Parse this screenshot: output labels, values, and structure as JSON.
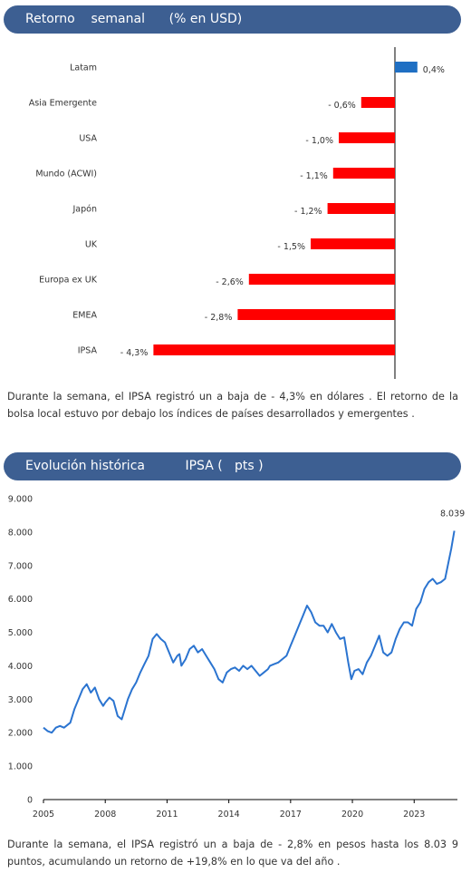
{
  "section1": {
    "title": "Retorno    semanal      (% en USD)",
    "paragraph": "Durante  la semana,  el IPSA registró  un a baja  de  - 4,3% en dólares  . El retorno  de la bolsa local estuvo por debajo los índices de países desarrollados  y emergentes  ."
  },
  "section2": {
    "title": "Evolución histórica          IPSA (   pts )",
    "paragraph": "Durante  la semana,  el IPSA registró  un a baja  de  - 2,8% en pesos  hasta  los  8.03 9 puntos,  acumulando   un retorno  de +19,8% en lo que  va del año ."
  },
  "colors": {
    "header_bg": "#3d5f92",
    "positive_bar": "#1f6fc3",
    "negative_bar": "#ff0000",
    "line": "#2b74d0"
  },
  "chart_data": [
    {
      "type": "bar",
      "orientation": "horizontal",
      "title": "Retorno    semanal      (% en USD)",
      "categories": [
        "Latam",
        "Asia Emergente",
        "USA",
        "Mundo (ACWI)",
        "Japón",
        "UK",
        "Europa ex UK",
        "EMEA",
        "IPSA"
      ],
      "values": [
        0.4,
        -0.6,
        -1.0,
        -1.1,
        -1.2,
        -1.5,
        -2.6,
        -2.8,
        -4.3
      ],
      "value_labels": [
        "0,4%",
        "- 0,6%",
        "- 1,0%",
        "- 1,1%",
        "- 1,2%",
        "- 1,5%",
        "- 2,6%",
        "- 2,8%",
        "- 4,3%"
      ],
      "grid": false
    },
    {
      "type": "line",
      "title": "Evolución histórica          IPSA (   pts )",
      "x_ticks": [
        "2005",
        "2008",
        "2011",
        "2014",
        "2017",
        "2020",
        "2023"
      ],
      "x_tick_values": [
        2005,
        2008,
        2011,
        2014,
        2017,
        2020,
        2023
      ],
      "y_ticks": [
        "0",
        "1.000",
        "2.000",
        "3.000",
        "4.000",
        "5.000",
        "6.000",
        "7.000",
        "8.000",
        "9.000"
      ],
      "y_tick_values": [
        0,
        1000,
        2000,
        3000,
        4000,
        5000,
        6000,
        7000,
        8000,
        9000
      ],
      "xlim": [
        2005,
        2025.1
      ],
      "ylim": [
        0,
        9000
      ],
      "end_label": "8.039",
      "grid": false,
      "series": [
        {
          "x": [
            2005.0,
            2005.2,
            2005.4,
            2005.6,
            2005.8,
            2006.0,
            2006.3,
            2006.5,
            2006.7,
            2006.9,
            2007.1,
            2007.3,
            2007.5,
            2007.7,
            2007.9,
            2008.0,
            2008.2,
            2008.4,
            2008.6,
            2008.8,
            2008.95,
            2009.1,
            2009.3,
            2009.5,
            2009.7,
            2009.9,
            2010.1,
            2010.3,
            2010.5,
            2010.7,
            2010.9,
            2011.1,
            2011.3,
            2011.5,
            2011.6,
            2011.7,
            2011.9,
            2012.1,
            2012.3,
            2012.5,
            2012.7,
            2012.9,
            2013.1,
            2013.3,
            2013.5,
            2013.7,
            2013.9,
            2014.1,
            2014.3,
            2014.5,
            2014.7,
            2014.9,
            2015.1,
            2015.3,
            2015.5,
            2015.7,
            2015.9,
            2016.0,
            2016.2,
            2016.4,
            2016.6,
            2016.8,
            2017.0,
            2017.2,
            2017.4,
            2017.6,
            2017.8,
            2018.0,
            2018.2,
            2018.4,
            2018.6,
            2018.8,
            2019.0,
            2019.2,
            2019.4,
            2019.6,
            2019.8,
            2019.95,
            2020.1,
            2020.3,
            2020.5,
            2020.7,
            2020.9,
            2021.1,
            2021.3,
            2021.5,
            2021.7,
            2021.9,
            2022.1,
            2022.3,
            2022.5,
            2022.7,
            2022.9,
            2023.1,
            2023.3,
            2023.5,
            2023.7,
            2023.9,
            2024.1,
            2024.3,
            2024.5,
            2024.7,
            2024.8,
            2024.95
          ],
          "y": [
            2150,
            2050,
            2000,
            2150,
            2200,
            2150,
            2300,
            2700,
            3000,
            3300,
            3450,
            3200,
            3350,
            3000,
            2800,
            2900,
            3050,
            2950,
            2500,
            2400,
            2700,
            3000,
            3300,
            3500,
            3800,
            4050,
            4300,
            4800,
            4950,
            4800,
            4700,
            4400,
            4100,
            4300,
            4350,
            4000,
            4200,
            4500,
            4600,
            4400,
            4500,
            4300,
            4100,
            3900,
            3600,
            3500,
            3800,
            3900,
            3950,
            3850,
            4000,
            3900,
            4000,
            3850,
            3700,
            3800,
            3900,
            4000,
            4050,
            4100,
            4200,
            4300,
            4600,
            4900,
            5200,
            5500,
            5800,
            5600,
            5300,
            5200,
            5200,
            5000,
            5250,
            5000,
            4800,
            4850,
            4100,
            3600,
            3850,
            3900,
            3750,
            4100,
            4300,
            4600,
            4900,
            4400,
            4300,
            4400,
            4800,
            5100,
            5300,
            5300,
            5200,
            5700,
            5900,
            6300,
            6500,
            6600,
            6450,
            6500,
            6600,
            7200,
            7500,
            8039
          ]
        }
      ]
    }
  ]
}
